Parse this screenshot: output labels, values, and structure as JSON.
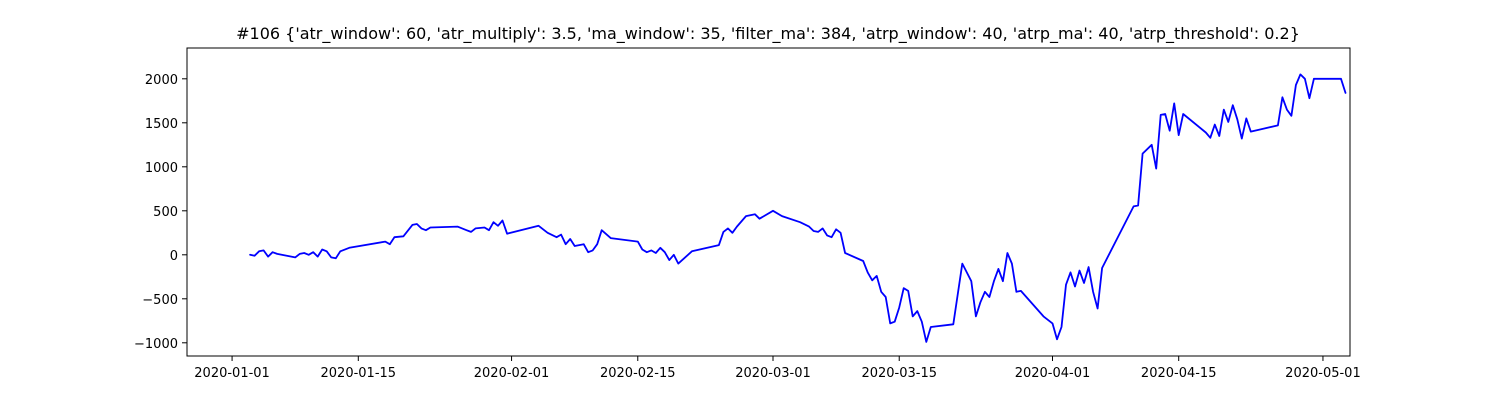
{
  "chart_data": {
    "type": "line",
    "title": "#106 {'atr_window': 60, 'atr_multiply': 3.5, 'ma_window': 35, 'filter_ma': 384, 'atrp_window': 40, 'atrp_ma': 40, 'atrp_threshold': 0.2}",
    "xlabel": "",
    "ylabel": "",
    "x_is_date": true,
    "xlim": [
      "2019-12-27",
      "2020-05-04"
    ],
    "ylim": [
      -1150,
      2350
    ],
    "xticks": [
      "2020-01-01",
      "2020-01-15",
      "2020-02-01",
      "2020-02-15",
      "2020-03-01",
      "2020-03-15",
      "2020-04-01",
      "2020-04-15",
      "2020-05-01"
    ],
    "yticks": [
      -1000,
      -500,
      0,
      500,
      1000,
      1500,
      2000
    ],
    "ytick_labels": [
      "−1000",
      "−500",
      "0",
      "500",
      "1000",
      "1500",
      "2000"
    ],
    "grid": false,
    "line_color": "#0000ff",
    "series": [
      {
        "points": [
          [
            "2020-01-03",
            0
          ],
          [
            "2020-01-03T12:00",
            -10
          ],
          [
            "2020-01-04",
            40
          ],
          [
            "2020-01-04T12:00",
            50
          ],
          [
            "2020-01-05",
            -20
          ],
          [
            "2020-01-05T12:00",
            30
          ],
          [
            "2020-01-06",
            10
          ],
          [
            "2020-01-08",
            -30
          ],
          [
            "2020-01-08T12:00",
            10
          ],
          [
            "2020-01-09",
            20
          ],
          [
            "2020-01-09T12:00",
            0
          ],
          [
            "2020-01-10",
            30
          ],
          [
            "2020-01-10T12:00",
            -20
          ],
          [
            "2020-01-11",
            60
          ],
          [
            "2020-01-11T12:00",
            40
          ],
          [
            "2020-01-12",
            -30
          ],
          [
            "2020-01-12T12:00",
            -40
          ],
          [
            "2020-01-13",
            40
          ],
          [
            "2020-01-14",
            80
          ],
          [
            "2020-01-18",
            150
          ],
          [
            "2020-01-18T12:00",
            120
          ],
          [
            "2020-01-19",
            200
          ],
          [
            "2020-01-20",
            210
          ],
          [
            "2020-01-21",
            340
          ],
          [
            "2020-01-21T12:00",
            350
          ],
          [
            "2020-01-22",
            300
          ],
          [
            "2020-01-22T12:00",
            280
          ],
          [
            "2020-01-23",
            310
          ],
          [
            "2020-01-26",
            320
          ],
          [
            "2020-01-27",
            280
          ],
          [
            "2020-01-27T12:00",
            260
          ],
          [
            "2020-01-28",
            300
          ],
          [
            "2020-01-29",
            310
          ],
          [
            "2020-01-29T12:00",
            280
          ],
          [
            "2020-01-30",
            370
          ],
          [
            "2020-01-30T12:00",
            330
          ],
          [
            "2020-01-31",
            390
          ],
          [
            "2020-01-31T12:00",
            240
          ],
          [
            "2020-02-04",
            330
          ],
          [
            "2020-02-05",
            250
          ],
          [
            "2020-02-06",
            200
          ],
          [
            "2020-02-06T12:00",
            230
          ],
          [
            "2020-02-07",
            120
          ],
          [
            "2020-02-07T12:00",
            180
          ],
          [
            "2020-02-08",
            100
          ],
          [
            "2020-02-09",
            120
          ],
          [
            "2020-02-09T12:00",
            30
          ],
          [
            "2020-02-10",
            50
          ],
          [
            "2020-02-10T12:00",
            120
          ],
          [
            "2020-02-11",
            280
          ],
          [
            "2020-02-12",
            190
          ],
          [
            "2020-02-15",
            150
          ],
          [
            "2020-02-15T12:00",
            60
          ],
          [
            "2020-02-16",
            30
          ],
          [
            "2020-02-16T12:00",
            50
          ],
          [
            "2020-02-17",
            20
          ],
          [
            "2020-02-17T12:00",
            80
          ],
          [
            "2020-02-18",
            30
          ],
          [
            "2020-02-18T12:00",
            -60
          ],
          [
            "2020-02-19",
            0
          ],
          [
            "2020-02-19T12:00",
            -100
          ],
          [
            "2020-02-21",
            40
          ],
          [
            "2020-02-24",
            110
          ],
          [
            "2020-02-24T12:00",
            260
          ],
          [
            "2020-02-25",
            300
          ],
          [
            "2020-02-25T12:00",
            250
          ],
          [
            "2020-02-26",
            320
          ],
          [
            "2020-02-27",
            440
          ],
          [
            "2020-02-28",
            460
          ],
          [
            "2020-02-28T12:00",
            410
          ],
          [
            "2020-03-01",
            500
          ],
          [
            "2020-03-02",
            440
          ],
          [
            "2020-03-04",
            370
          ],
          [
            "2020-03-05",
            320
          ],
          [
            "2020-03-05T12:00",
            270
          ],
          [
            "2020-03-06",
            260
          ],
          [
            "2020-03-06T12:00",
            300
          ],
          [
            "2020-03-07",
            220
          ],
          [
            "2020-03-07T12:00",
            200
          ],
          [
            "2020-03-08",
            290
          ],
          [
            "2020-03-08T12:00",
            250
          ],
          [
            "2020-03-09",
            20
          ],
          [
            "2020-03-11",
            -70
          ],
          [
            "2020-03-11T12:00",
            -200
          ],
          [
            "2020-03-12",
            -290
          ],
          [
            "2020-03-12T12:00",
            -240
          ],
          [
            "2020-03-13",
            -420
          ],
          [
            "2020-03-13T12:00",
            -480
          ],
          [
            "2020-03-14",
            -780
          ],
          [
            "2020-03-14T12:00",
            -760
          ],
          [
            "2020-03-15",
            -600
          ],
          [
            "2020-03-15T12:00",
            -380
          ],
          [
            "2020-03-16",
            -410
          ],
          [
            "2020-03-16T12:00",
            -700
          ],
          [
            "2020-03-17",
            -640
          ],
          [
            "2020-03-17T12:00",
            -760
          ],
          [
            "2020-03-18",
            -990
          ],
          [
            "2020-03-18T12:00",
            -820
          ],
          [
            "2020-03-21",
            -790
          ],
          [
            "2020-03-22",
            -100
          ],
          [
            "2020-03-22T12:00",
            -200
          ],
          [
            "2020-03-23",
            -300
          ],
          [
            "2020-03-23T12:00",
            -700
          ],
          [
            "2020-03-24",
            -540
          ],
          [
            "2020-03-24T12:00",
            -420
          ],
          [
            "2020-03-25",
            -480
          ],
          [
            "2020-03-25T12:00",
            -300
          ],
          [
            "2020-03-26",
            -160
          ],
          [
            "2020-03-26T12:00",
            -300
          ],
          [
            "2020-03-27",
            20
          ],
          [
            "2020-03-27T12:00",
            -100
          ],
          [
            "2020-03-28",
            -420
          ],
          [
            "2020-03-28T12:00",
            -410
          ],
          [
            "2020-03-31",
            -700
          ],
          [
            "2020-04-01",
            -780
          ],
          [
            "2020-04-01T12:00",
            -960
          ],
          [
            "2020-04-02",
            -820
          ],
          [
            "2020-04-02T12:00",
            -340
          ],
          [
            "2020-04-03",
            -200
          ],
          [
            "2020-04-03T12:00",
            -360
          ],
          [
            "2020-04-04",
            -180
          ],
          [
            "2020-04-04T12:00",
            -320
          ],
          [
            "2020-04-05",
            -140
          ],
          [
            "2020-04-05T12:00",
            -420
          ],
          [
            "2020-04-06",
            -610
          ],
          [
            "2020-04-06T12:00",
            -150
          ],
          [
            "2020-04-10",
            550
          ],
          [
            "2020-04-10T12:00",
            560
          ],
          [
            "2020-04-11",
            1150
          ],
          [
            "2020-04-12",
            1250
          ],
          [
            "2020-04-12T12:00",
            980
          ],
          [
            "2020-04-13",
            1590
          ],
          [
            "2020-04-13T12:00",
            1600
          ],
          [
            "2020-04-14",
            1410
          ],
          [
            "2020-04-14T12:00",
            1720
          ],
          [
            "2020-04-15",
            1360
          ],
          [
            "2020-04-15T12:00",
            1600
          ],
          [
            "2020-04-18",
            1390
          ],
          [
            "2020-04-18T12:00",
            1330
          ],
          [
            "2020-04-19",
            1480
          ],
          [
            "2020-04-19T12:00",
            1350
          ],
          [
            "2020-04-20",
            1650
          ],
          [
            "2020-04-20T12:00",
            1510
          ],
          [
            "2020-04-21",
            1700
          ],
          [
            "2020-04-21T12:00",
            1540
          ],
          [
            "2020-04-22",
            1320
          ],
          [
            "2020-04-22T12:00",
            1550
          ],
          [
            "2020-04-23",
            1400
          ],
          [
            "2020-04-26",
            1470
          ],
          [
            "2020-04-26T12:00",
            1790
          ],
          [
            "2020-04-27",
            1650
          ],
          [
            "2020-04-27T12:00",
            1580
          ],
          [
            "2020-04-28",
            1930
          ],
          [
            "2020-04-28T12:00",
            2050
          ],
          [
            "2020-04-29",
            2000
          ],
          [
            "2020-04-29T12:00",
            1780
          ],
          [
            "2020-04-30",
            2000
          ],
          [
            "2020-05-03",
            2000
          ],
          [
            "2020-05-03T12:00",
            1840
          ]
        ]
      }
    ]
  }
}
